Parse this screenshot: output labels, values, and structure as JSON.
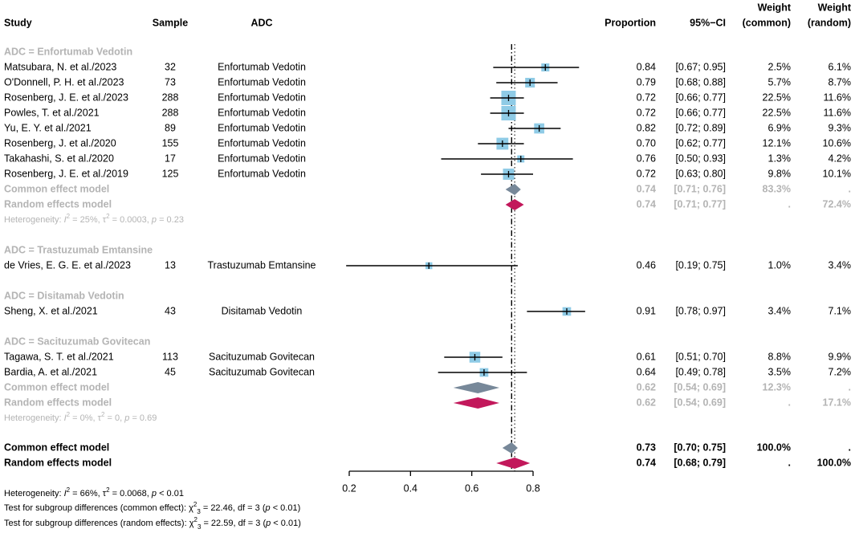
{
  "chart_data": {
    "type": "forest",
    "headers": {
      "study": "Study",
      "sample": "Sample",
      "adc": "ADC",
      "proportion": "Proportion",
      "ci": "95%−CI",
      "weight_common": [
        "Weight",
        "(common)"
      ],
      "weight_random": [
        "Weight",
        "(random)"
      ]
    },
    "axis": {
      "min": 0.2,
      "max": 0.8,
      "ticks": [
        "0.2",
        "0.4",
        "0.6",
        "0.8"
      ],
      "reference_line": 0.73
    },
    "groups": [
      {
        "title": "ADC = Enfortumab Vedotin",
        "studies": [
          {
            "study": "Matsubara, N. et al./2023",
            "n": "32",
            "adc": "Enfortumab Vedotin",
            "est": 0.84,
            "lo": 0.67,
            "hi": 0.95,
            "prop": "0.84",
            "ci": "[0.67; 0.95]",
            "wc": "2.5%",
            "wr": "6.1%",
            "w": 2.5
          },
          {
            "study": "O'Donnell, P. H. et al./2023",
            "n": "73",
            "adc": "Enfortumab Vedotin",
            "est": 0.79,
            "lo": 0.68,
            "hi": 0.88,
            "prop": "0.79",
            "ci": "[0.68; 0.88]",
            "wc": "5.7%",
            "wr": "8.7%",
            "w": 5.7
          },
          {
            "study": "Rosenberg, J. E. et al./2023",
            "n": "288",
            "adc": "Enfortumab Vedotin",
            "est": 0.72,
            "lo": 0.66,
            "hi": 0.77,
            "prop": "0.72",
            "ci": "[0.66; 0.77]",
            "wc": "22.5%",
            "wr": "11.6%",
            "w": 22.5
          },
          {
            "study": "Powles, T. et al./2021",
            "n": "288",
            "adc": "Enfortumab Vedotin",
            "est": 0.72,
            "lo": 0.66,
            "hi": 0.77,
            "prop": "0.72",
            "ci": "[0.66; 0.77]",
            "wc": "22.5%",
            "wr": "11.6%",
            "w": 22.5
          },
          {
            "study": "Yu, E. Y. et al./2021",
            "n": "89",
            "adc": "Enfortumab Vedotin",
            "est": 0.82,
            "lo": 0.72,
            "hi": 0.89,
            "prop": "0.82",
            "ci": "[0.72; 0.89]",
            "wc": "6.9%",
            "wr": "9.3%",
            "w": 6.9
          },
          {
            "study": "Rosenberg, J. et al./2020",
            "n": "155",
            "adc": "Enfortumab Vedotin",
            "est": 0.7,
            "lo": 0.62,
            "hi": 0.77,
            "prop": "0.70",
            "ci": "[0.62; 0.77]",
            "wc": "12.1%",
            "wr": "10.6%",
            "w": 12.1
          },
          {
            "study": "Takahashi, S. et al./2020",
            "n": "17",
            "adc": "Enfortumab Vedotin",
            "est": 0.76,
            "lo": 0.5,
            "hi": 0.93,
            "prop": "0.76",
            "ci": "[0.50; 0.93]",
            "wc": "1.3%",
            "wr": "4.2%",
            "w": 1.3
          },
          {
            "study": "Rosenberg, J. E. et al./2019",
            "n": "125",
            "adc": "Enfortumab Vedotin",
            "est": 0.72,
            "lo": 0.63,
            "hi": 0.8,
            "prop": "0.72",
            "ci": "[0.63; 0.80]",
            "wc": "9.8%",
            "wr": "10.1%",
            "w": 9.8
          }
        ],
        "common": {
          "label": "Common effect model",
          "est": 0.74,
          "lo": 0.71,
          "hi": 0.76,
          "prop": "0.74",
          "ci": "[0.71; 0.76]",
          "wc": "83.3%",
          "wr": "."
        },
        "random": {
          "label": "Random effects model",
          "est": 0.74,
          "lo": 0.71,
          "hi": 0.77,
          "prop": "0.74",
          "ci": "[0.71; 0.77]",
          "wc": ".",
          "wr": "72.4%"
        },
        "heterogeneity": {
          "i2": "25%",
          "tau2": "0.0003",
          "p": "0.23"
        }
      },
      {
        "title": "ADC = Trastuzumab Emtansine",
        "studies": [
          {
            "study": "de Vries, E. G. E. et al./2023",
            "n": "13",
            "adc": "Trastuzumab Emtansine",
            "est": 0.46,
            "lo": 0.19,
            "hi": 0.75,
            "prop": "0.46",
            "ci": "[0.19; 0.75]",
            "wc": "1.0%",
            "wr": "3.4%",
            "w": 1.0
          }
        ]
      },
      {
        "title": "ADC = Disitamab Vedotin",
        "studies": [
          {
            "study": "Sheng, X. et al./2021",
            "n": "43",
            "adc": "Disitamab Vedotin",
            "est": 0.91,
            "lo": 0.78,
            "hi": 0.97,
            "prop": "0.91",
            "ci": "[0.78; 0.97]",
            "wc": "3.4%",
            "wr": "7.1%",
            "w": 3.4
          }
        ]
      },
      {
        "title": "ADC = Sacituzumab Govitecan",
        "studies": [
          {
            "study": "Tagawa, S. T. et al./2021",
            "n": "113",
            "adc": "Sacituzumab Govitecan",
            "est": 0.61,
            "lo": 0.51,
            "hi": 0.7,
            "prop": "0.61",
            "ci": "[0.51; 0.70]",
            "wc": "8.8%",
            "wr": "9.9%",
            "w": 8.8
          },
          {
            "study": "Bardia, A. et al./2021",
            "n": "45",
            "adc": "Sacituzumab Govitecan",
            "est": 0.64,
            "lo": 0.49,
            "hi": 0.78,
            "prop": "0.64",
            "ci": "[0.49; 0.78]",
            "wc": "3.5%",
            "wr": "7.2%",
            "w": 3.5
          }
        ],
        "common": {
          "label": "Common effect model",
          "est": 0.62,
          "lo": 0.54,
          "hi": 0.69,
          "prop": "0.62",
          "ci": "[0.54; 0.69]",
          "wc": "12.3%",
          "wr": "."
        },
        "random": {
          "label": "Random effects model",
          "est": 0.62,
          "lo": 0.54,
          "hi": 0.69,
          "prop": "0.62",
          "ci": "[0.54; 0.69]",
          "wc": ".",
          "wr": "17.1%"
        },
        "heterogeneity": {
          "i2": "0%",
          "tau2": "0",
          "p": "0.69"
        }
      }
    ],
    "overall": {
      "common": {
        "label": "Common effect model",
        "est": 0.73,
        "lo": 0.7,
        "hi": 0.75,
        "prop": "0.73",
        "ci": "[0.70; 0.75]",
        "wc": "100.0%",
        "wr": "."
      },
      "random": {
        "label": "Random effects model",
        "est": 0.74,
        "lo": 0.68,
        "hi": 0.79,
        "prop": "0.74",
        "ci": "[0.68; 0.79]",
        "wc": ".",
        "wr": "100.0%"
      }
    },
    "footer": {
      "heterogeneity": {
        "prefix": "Heterogeneity: ",
        "i2": "66%",
        "tau2": "0.0068",
        "p": "< 0.01"
      },
      "test_common": {
        "prefix": "Test for subgroup differences (common effect): ",
        "chi": "22.46",
        "df": "3",
        "p": "< 0.01"
      },
      "test_random": {
        "prefix": "Test for subgroup differences (random effects): ",
        "chi": "22.59",
        "df": "3",
        "p": "< 0.01"
      }
    },
    "colors": {
      "box": "#8fcbe6",
      "common_diamond": "#778899",
      "random_diamond": "#c2185b",
      "grey_text": "#b4b4b4"
    }
  }
}
